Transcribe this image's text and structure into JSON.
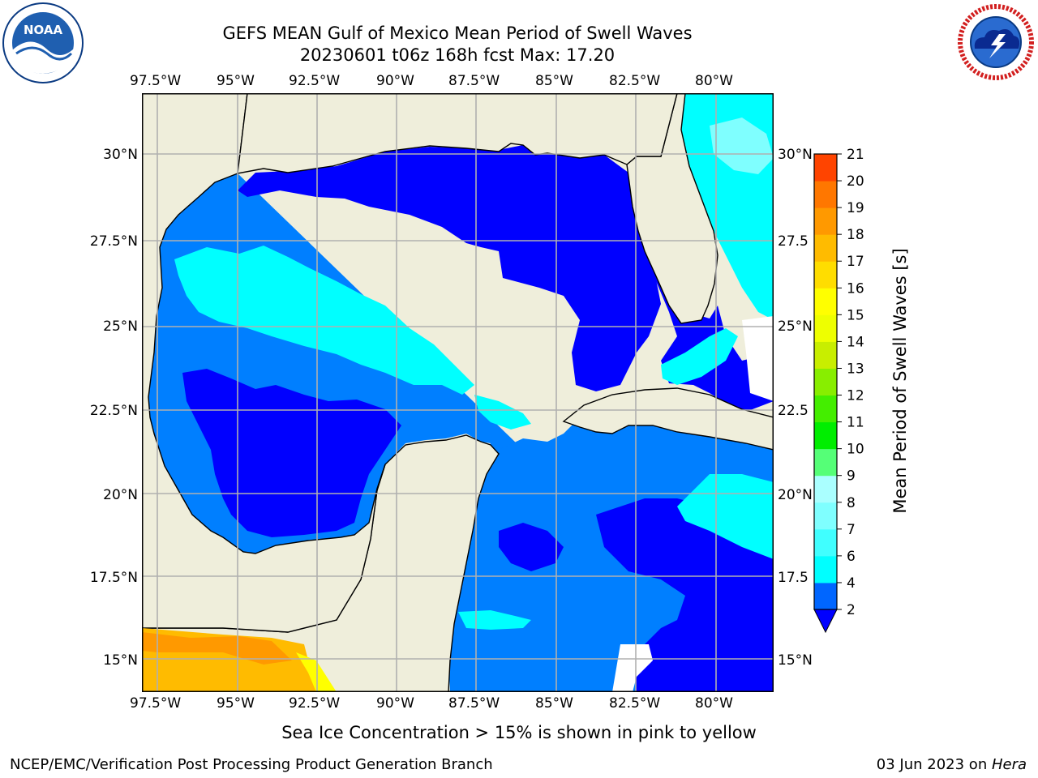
{
  "header": {
    "title_line1": "GEFS MEAN Gulf of Mexico Mean Period of Swell Waves",
    "title_line2": "20230601 t06z 168h fcst   Max: 17.20"
  },
  "logos": {
    "left_org": "NOAA",
    "left_ring_text": "NATIONAL OCEANIC AND ATMOSPHERIC ADMINISTRATION · U.S. DEPARTMENT OF COMMERCE",
    "right_ring_text": "NATIONAL WEATHER SERVICE"
  },
  "map": {
    "lon_labels": [
      "97.5°W",
      "95°W",
      "92.5°W",
      "90°W",
      "87.5°W",
      "85°W",
      "82.5°W",
      "80°W"
    ],
    "lat_labels": [
      "30°N",
      "27.5°N",
      "25°N",
      "22.5°N",
      "20°N",
      "17.5°N",
      "15°N"
    ],
    "lat_labels_right": [
      "30°N",
      "27.5",
      "25°N",
      "22.5",
      "20°N",
      "17.5",
      "15°N"
    ],
    "colors": {
      "land": "#efeedb",
      "ocean_2_4": "#007fff",
      "ocean_lt2": "#0000ff",
      "ocean_4_6": "#00ffff",
      "ocean_6_8": "#7fffff",
      "orange": "#ff9900",
      "gold": "#ffbb00",
      "yellow": "#ffff00",
      "grid": "#b0b0b0"
    }
  },
  "colorbar": {
    "label": "Mean Period of Swell Waves [s]",
    "ticks": [
      "2",
      "4",
      "6",
      "7",
      "8",
      "9",
      "10",
      "11",
      "12",
      "13",
      "14",
      "15",
      "16",
      "17",
      "18",
      "19",
      "20",
      "21"
    ],
    "colors": [
      "#0066ff",
      "#00ffff",
      "#40ffff",
      "#7fffff",
      "#aaffff",
      "#55ff77",
      "#00ee00",
      "#44ee00",
      "#88ee00",
      "#c8ee00",
      "#eeff00",
      "#ffff00",
      "#ffdd00",
      "#ffbb00",
      "#ff9900",
      "#ff7700",
      "#ff4400",
      "#ff1100",
      "#ff0000"
    ],
    "extend_color": "#0000ff"
  },
  "notes": {
    "sea_ice": "Sea Ice Concentration > 15% is shown in pink to yellow",
    "producer": "NCEP/EMC/Verification Post Processing Product Generation Branch",
    "date": "03 Jun 2023 on ",
    "machine": "Hera"
  }
}
